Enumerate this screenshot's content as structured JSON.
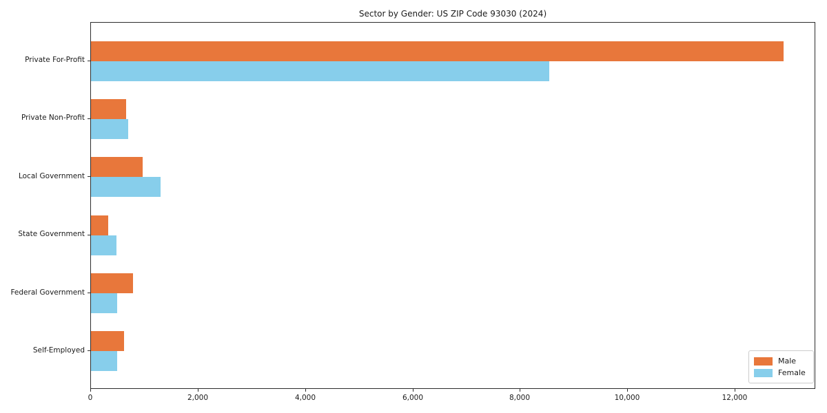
{
  "title": "Sector by Gender: US ZIP Code 93030 (2024)",
  "chart_data": {
    "type": "bar",
    "orientation": "horizontal",
    "title": "Sector by Gender: US ZIP Code 93030 (2024)",
    "categories": [
      "Private For-Profit",
      "Private Non-Profit",
      "Local Government",
      "State Government",
      "Federal Government",
      "Self-Employed"
    ],
    "series": [
      {
        "name": "Male",
        "color": "#E8773B",
        "values": [
          12900,
          660,
          960,
          320,
          780,
          615
        ]
      },
      {
        "name": "Female",
        "color": "#87CEEB",
        "values": [
          8540,
          695,
          1290,
          470,
          490,
          485
        ]
      }
    ],
    "xlabel": "",
    "ylabel": "",
    "xlim": [
      0,
      13500
    ],
    "xticks": [
      0,
      2000,
      4000,
      6000,
      8000,
      10000,
      12000
    ],
    "xtick_labels": [
      "0",
      "2,000",
      "4,000",
      "6,000",
      "8,000",
      "10,000",
      "12,000"
    ],
    "grid": false,
    "legend_position": "lower right",
    "legend": {
      "items": [
        {
          "label": "Male",
          "color": "#E8773B"
        },
        {
          "label": "Female",
          "color": "#87CEEB"
        }
      ]
    },
    "colors": {
      "male": "#E8773B",
      "female": "#87CEEB",
      "spine": "#2b2b2b",
      "legend_border": "#cccccc",
      "text": "#1a1a1a",
      "background": "#ffffff"
    }
  }
}
